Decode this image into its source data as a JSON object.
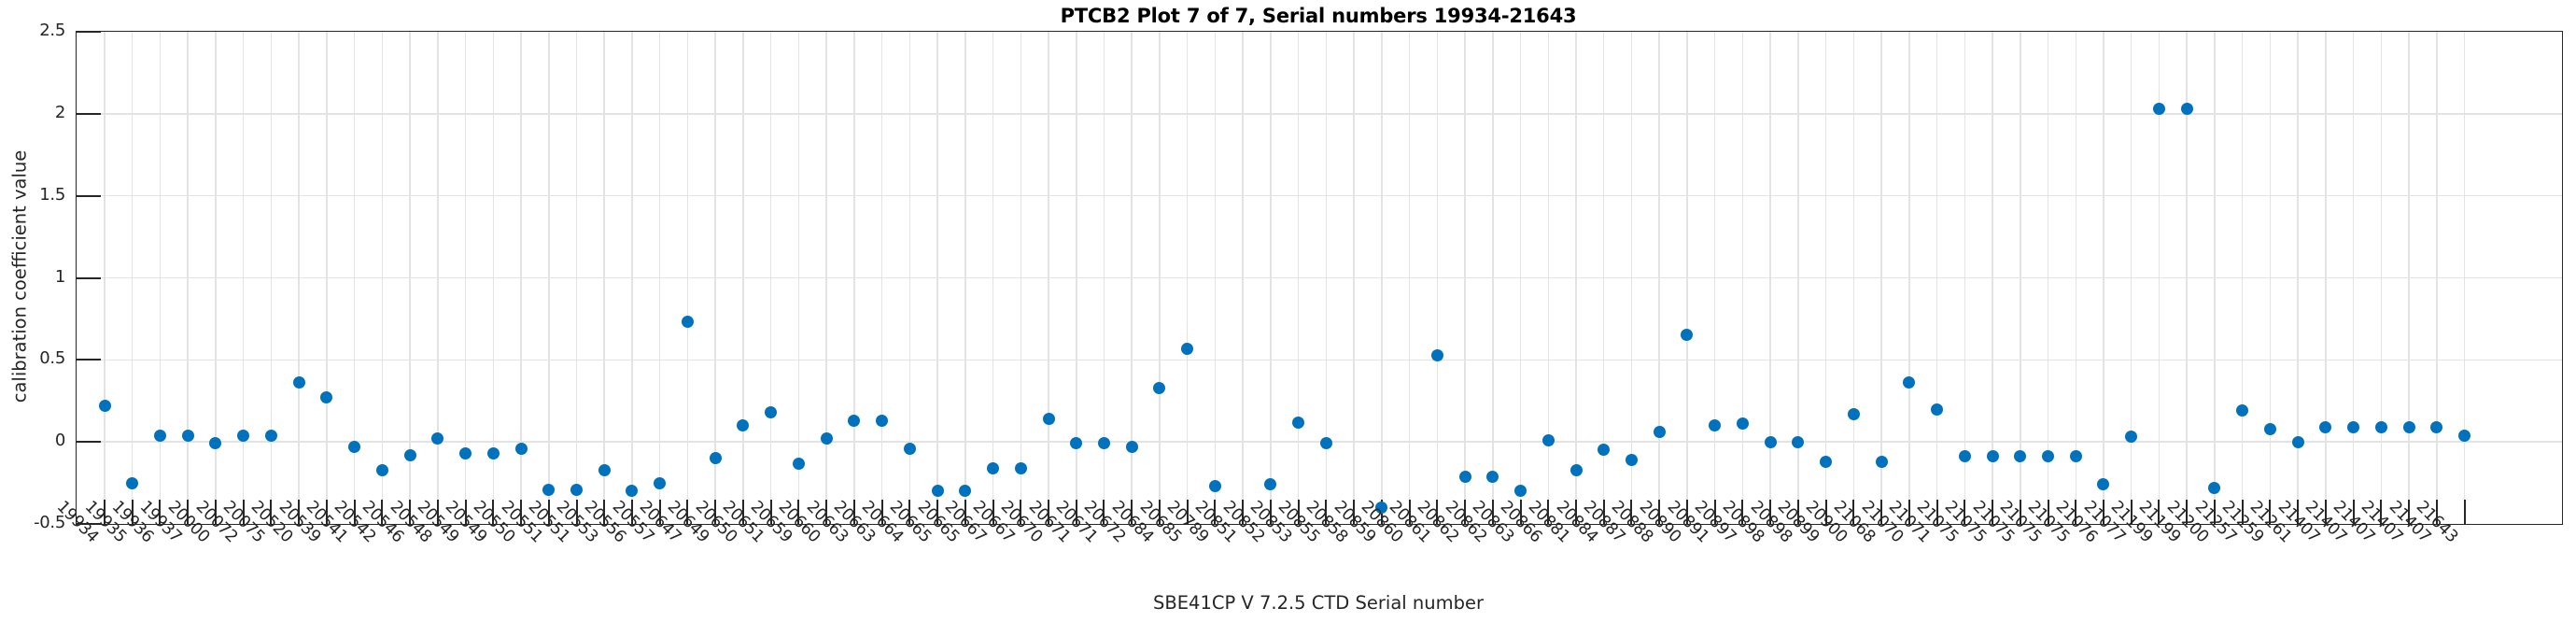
{
  "figure": {
    "title": "PTCB2 Plot 7 of 7, Serial numbers 19934-21643",
    "xlabel": "SBE41CP V 7.2.5 CTD Serial number",
    "ylabel": "calibration coefficient value"
  },
  "chart_data": {
    "type": "scatter",
    "title": "PTCB2 Plot 7 of 7, Serial numbers 19934-21643",
    "xlabel": "SBE41CP V 7.2.5 CTD Serial number",
    "ylabel": "calibration coefficient value",
    "ylim": [
      -0.5,
      2.5
    ],
    "yticks": [
      2.5,
      2,
      1.5,
      1,
      0.5,
      0,
      -0.5
    ],
    "ytick_labels": [
      "2.5",
      "2",
      "1.5",
      "1",
      "0.5",
      "0",
      "-0.5"
    ],
    "grid": true,
    "legend": "none",
    "marker_color": "#0072BD",
    "grid_color": "#e3e3e3",
    "axis_color": "#262626",
    "categories": [
      "19934",
      "19935",
      "19936",
      "19937",
      "20000",
      "20072",
      "20075",
      "20520",
      "20539",
      "20541",
      "20542",
      "20546",
      "20548",
      "20549",
      "20549",
      "20550",
      "20551",
      "20551",
      "20553",
      "20556",
      "20557",
      "20647",
      "20649",
      "20650",
      "20651",
      "20659",
      "20660",
      "20663",
      "20663",
      "20664",
      "20665",
      "20665",
      "20667",
      "20667",
      "20670",
      "20671",
      "20671",
      "20672",
      "20684",
      "20685",
      "20789",
      "20851",
      "20852",
      "20853",
      "20855",
      "20858",
      "20859",
      "20860",
      "20861",
      "20862",
      "20862",
      "20863",
      "20866",
      "20881",
      "20884",
      "20887",
      "20888",
      "20890",
      "20891",
      "20897",
      "20898",
      "20898",
      "20899",
      "20900",
      "21068",
      "21070",
      "21071",
      "21075",
      "21075",
      "21075",
      "21075",
      "21075",
      "21076",
      "21077",
      "21199",
      "21199",
      "21200",
      "21257",
      "21259",
      "21261",
      "21407",
      "21407",
      "21407",
      "21407",
      "21407",
      "21643"
    ],
    "values": [
      0.22,
      -0.25,
      0.04,
      0.04,
      -0.01,
      0.04,
      0.04,
      0.36,
      0.27,
      -0.03,
      -0.17,
      -0.08,
      0.02,
      -0.07,
      -0.07,
      -0.04,
      -0.29,
      -0.29,
      -0.17,
      -0.3,
      -0.25,
      0.73,
      -0.1,
      0.1,
      0.18,
      -0.13,
      0.02,
      0.13,
      0.13,
      -0.04,
      -0.3,
      -0.3,
      -0.16,
      -0.16,
      0.14,
      -0.01,
      -0.01,
      -0.03,
      0.33,
      0.57,
      -0.27,
      null,
      -0.26,
      0.12,
      -0.01,
      null,
      -0.4,
      null,
      0.53,
      -0.21,
      -0.21,
      -0.3,
      0.01,
      -0.17,
      -0.05,
      -0.11,
      0.06,
      0.65,
      0.1,
      0.11,
      0.0,
      0.0,
      -0.12,
      0.17,
      -0.12,
      0.36,
      0.2,
      -0.09,
      -0.09,
      -0.09,
      -0.09,
      -0.09,
      -0.26,
      0.03,
      2.03,
      2.03,
      -0.28,
      0.19,
      0.08,
      0.0,
      0.09,
      0.09,
      0.09,
      0.09,
      0.09,
      0.04
    ]
  }
}
